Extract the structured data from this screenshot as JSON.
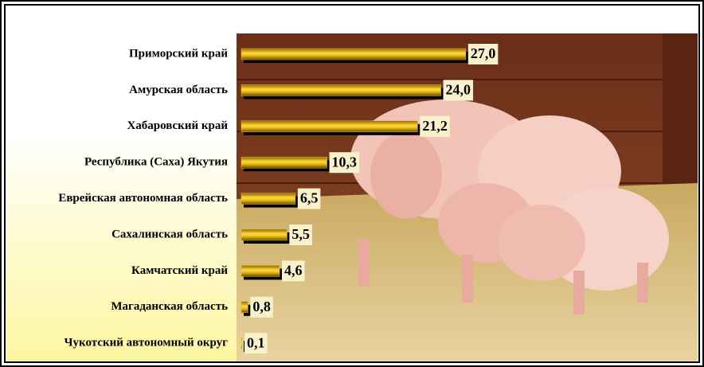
{
  "chart_data": {
    "type": "bar",
    "orientation": "horizontal",
    "categories": [
      "Приморский край",
      "Амурская область",
      "Хабаровский край",
      "Республика (Саха) Якутия",
      "Еврейская автономная область",
      "Сахалинская область",
      "Камчатский край",
      "Магаданская область",
      "Чукотский автономный округ"
    ],
    "values": [
      27.0,
      24.0,
      21.2,
      10.3,
      6.5,
      5.5,
      4.6,
      0.8,
      0.1
    ],
    "value_labels": [
      "27,0",
      "24,0",
      "21,2",
      "10,3",
      "6,5",
      "5,5",
      "4,6",
      "0,8",
      "0,1"
    ],
    "color": "#f0c020"
  }
}
